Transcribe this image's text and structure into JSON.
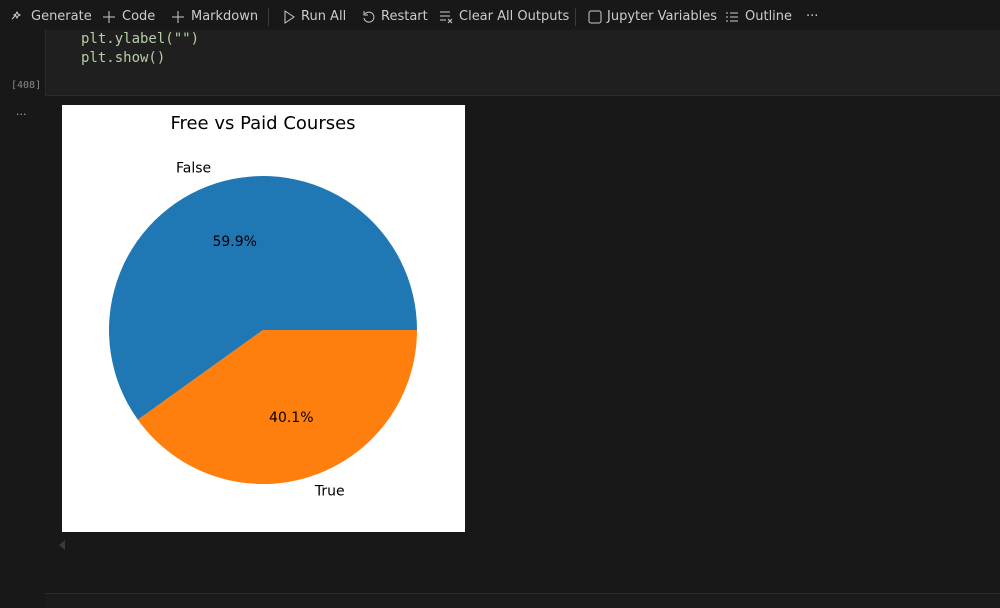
{
  "toolbar": {
    "items": [
      "Generate",
      "Code",
      "Markdown",
      "Run All",
      "Restart",
      "Clear All Outputs",
      "Jupyter Variables",
      "Outline",
      "···"
    ]
  },
  "cell": {
    "code_lines": [
      "plt.ylabel(\"\")",
      "plt.show()"
    ],
    "execution_count": "[408]",
    "output_indicator": "···"
  },
  "chart_data": {
    "type": "pie",
    "title": "Free vs Paid Courses",
    "categories": [
      "False",
      "True"
    ],
    "values": [
      59.9,
      40.1
    ],
    "value_labels": [
      "59.9%",
      "40.1%"
    ],
    "colors": [
      "#1f77b4",
      "#ff7f0e"
    ]
  }
}
